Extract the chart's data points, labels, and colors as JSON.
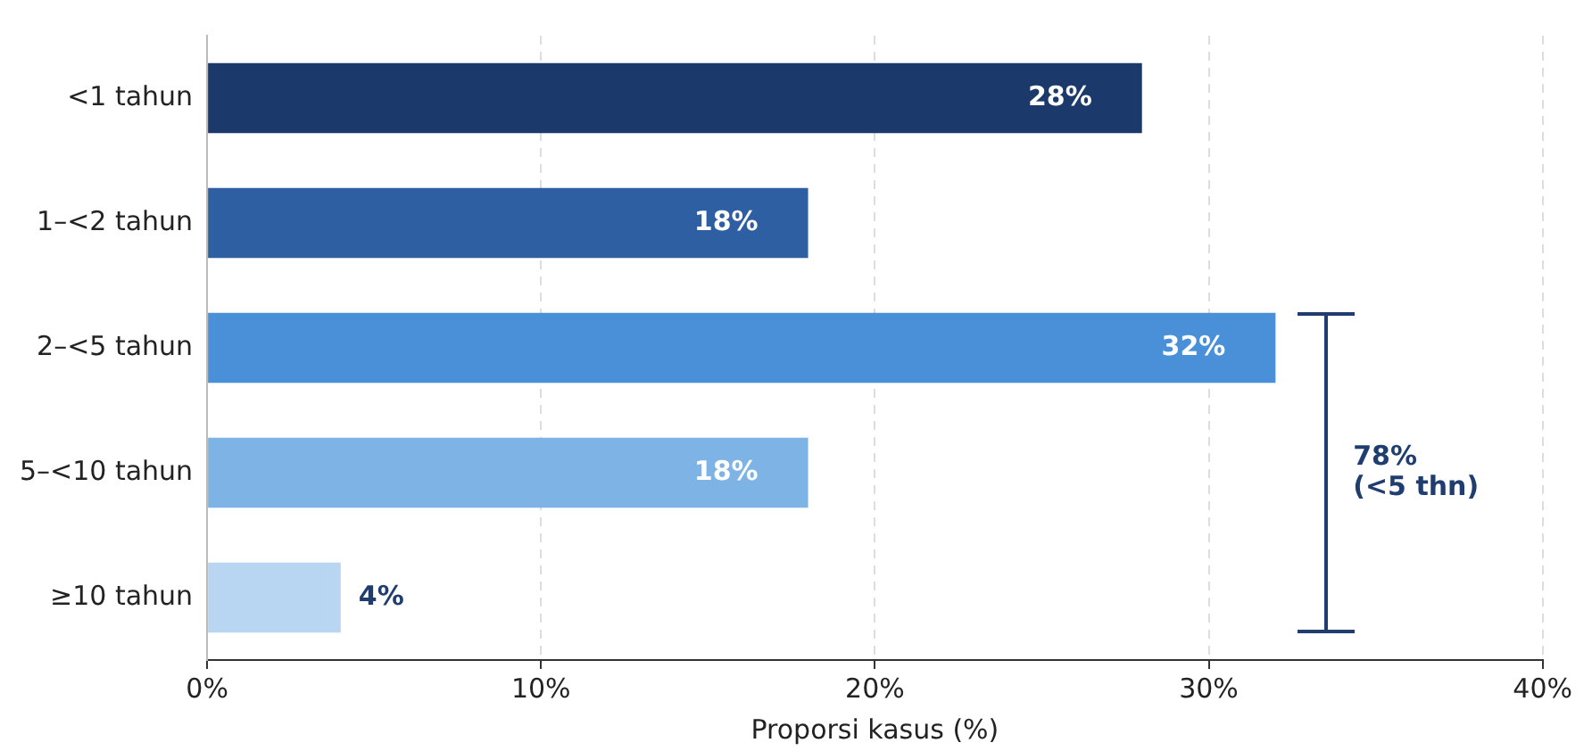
{
  "chart_data": {
    "type": "bar",
    "orientation": "horizontal",
    "xlabel": "Proporsi kasus (%)",
    "categories": [
      "<1 tahun",
      "1–<2 tahun",
      "2–<5 tahun",
      "5–<10 tahun",
      "≥10 tahun"
    ],
    "values": [
      28,
      18,
      32,
      18,
      4
    ],
    "colors": [
      "#1b3a6b",
      "#2e5fa3",
      "#4a90d9",
      "#7eb3e6",
      "#b8d5f2"
    ],
    "value_labels": [
      "28%",
      "18%",
      "32%",
      "18%",
      "4%"
    ],
    "xlim": [
      0,
      40
    ],
    "xticks": [
      {
        "value": 0,
        "label": "0%"
      },
      {
        "value": 10,
        "label": "10%"
      },
      {
        "value": 20,
        "label": "20%"
      },
      {
        "value": 30,
        "label": "30%"
      },
      {
        "value": 40,
        "label": "40%"
      }
    ],
    "grid": "x",
    "legend": false,
    "annotations": [
      "78%\n(<5 thn)"
    ]
  }
}
